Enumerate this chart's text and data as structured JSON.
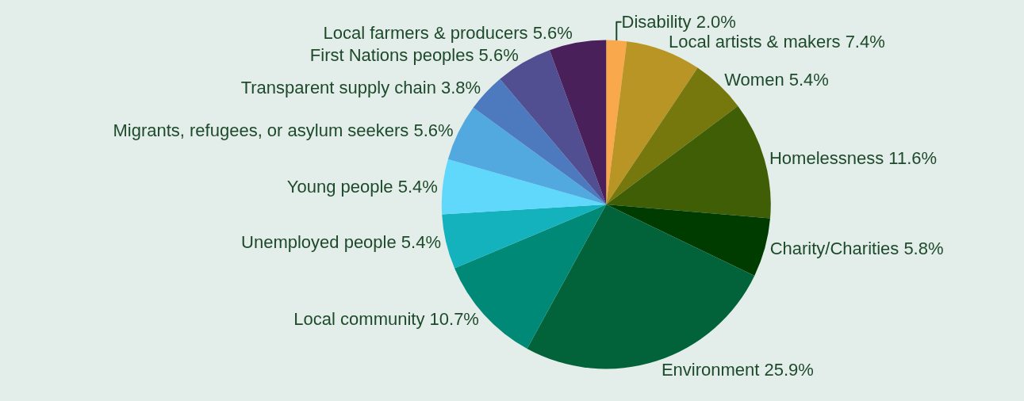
{
  "chart_data": {
    "type": "pie",
    "categories": [
      "Disability",
      "Local artists & makers",
      "Women",
      "Homelessness",
      "Charity/Charities",
      "Environment",
      "Local community",
      "Unemployed people",
      "Young people",
      "Migrants, refugees, or asylum seekers",
      "Transparent supply chain",
      "First Nations peoples",
      "Local farmers & producers"
    ],
    "values": [
      2.0,
      7.4,
      5.4,
      11.6,
      5.8,
      25.9,
      10.7,
      5.4,
      5.4,
      5.6,
      3.8,
      5.6,
      5.6
    ],
    "value_labels": [
      "2.0%",
      "7.4%",
      "5.4%",
      "11.6%",
      "5.8%",
      "25.9%",
      "10.7%",
      "5.4%",
      "5.4%",
      "5.6%",
      "3.8%",
      "5.6%",
      "5.6%"
    ],
    "colors": [
      "#f9a94b",
      "#b89525",
      "#76780e",
      "#3f5e06",
      "#003c00",
      "#02633a",
      "#008977",
      "#13b2bd",
      "#5fd8fb",
      "#52a9e0",
      "#4d7abf",
      "#514f91",
      "#4a205b"
    ],
    "legend": false
  }
}
